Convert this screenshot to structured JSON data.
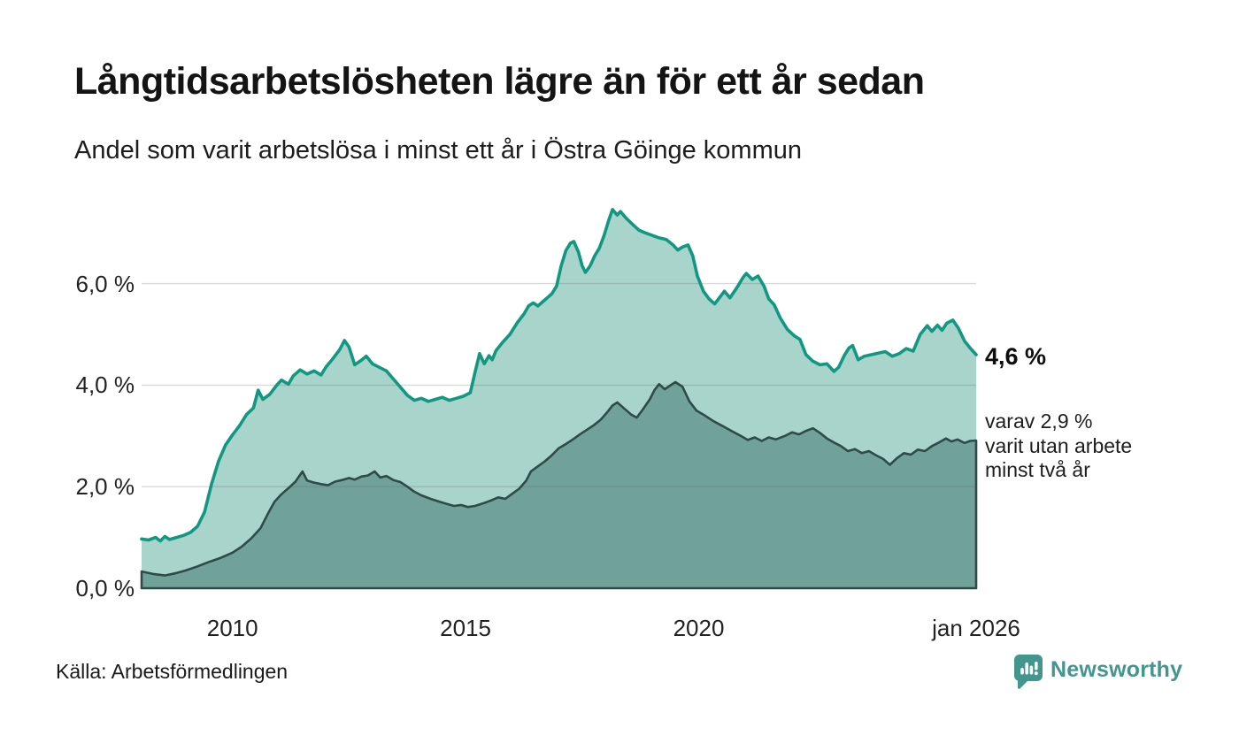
{
  "brand": {
    "name": "Newsworthy"
  },
  "colors": {
    "line_primary": "#129781",
    "fill_primary": "#a8d4cb",
    "line_secondary": "#2d4b47",
    "fill_secondary": "#71a29a",
    "gridline": "#d8d8d8",
    "brand_teal": "#43968d",
    "text": "#141414"
  },
  "chart_data": {
    "type": "area",
    "title": "Långtidsarbetslösheten lägre än för ett år sedan",
    "subtitle": "Andel som varit arbetslösa i minst ett år i Östra Göinge kommun",
    "source": "Källa: Arbetsförmedlingen",
    "xlim": [
      2008.05,
      2025.95
    ],
    "ylim": [
      0,
      7.8
    ],
    "grid": "horizontal",
    "legend": "none",
    "x_ticks": [
      {
        "t": 2010,
        "label": "2010"
      },
      {
        "t": 2015,
        "label": "2015"
      },
      {
        "t": 2020,
        "label": "2020"
      },
      {
        "t": 2025.95,
        "label": "jan 2026"
      }
    ],
    "y_ticks": [
      {
        "v": 0,
        "label": "0,0 %"
      },
      {
        "v": 2,
        "label": "2,0 %"
      },
      {
        "v": 4,
        "label": "4,0 %"
      },
      {
        "v": 6,
        "label": "6,0 %"
      }
    ],
    "annotations": {
      "latest_value_label": "4,6 %",
      "secondary_note": "varav 2,9 %\nvarit utan arbete\nminst två år"
    },
    "series": [
      {
        "name": "Arbetslösa minst ett år",
        "latest_value": 4.6,
        "line_color": "#129781",
        "fill_color": "#a8d4cb",
        "points": [
          [
            2008.05,
            0.97
          ],
          [
            2008.2,
            0.95
          ],
          [
            2008.35,
            1.0
          ],
          [
            2008.45,
            0.93
          ],
          [
            2008.55,
            1.02
          ],
          [
            2008.65,
            0.96
          ],
          [
            2008.8,
            1.0
          ],
          [
            2008.95,
            1.04
          ],
          [
            2009.1,
            1.1
          ],
          [
            2009.25,
            1.22
          ],
          [
            2009.4,
            1.5
          ],
          [
            2009.55,
            2.05
          ],
          [
            2009.7,
            2.5
          ],
          [
            2009.85,
            2.82
          ],
          [
            2010.0,
            3.02
          ],
          [
            2010.15,
            3.2
          ],
          [
            2010.3,
            3.42
          ],
          [
            2010.45,
            3.55
          ],
          [
            2010.55,
            3.9
          ],
          [
            2010.65,
            3.72
          ],
          [
            2010.8,
            3.82
          ],
          [
            2010.95,
            4.0
          ],
          [
            2011.05,
            4.1
          ],
          [
            2011.2,
            4.02
          ],
          [
            2011.3,
            4.18
          ],
          [
            2011.45,
            4.3
          ],
          [
            2011.6,
            4.22
          ],
          [
            2011.75,
            4.28
          ],
          [
            2011.9,
            4.2
          ],
          [
            2012.0,
            4.35
          ],
          [
            2012.15,
            4.52
          ],
          [
            2012.3,
            4.7
          ],
          [
            2012.4,
            4.88
          ],
          [
            2012.5,
            4.75
          ],
          [
            2012.62,
            4.4
          ],
          [
            2012.75,
            4.48
          ],
          [
            2012.87,
            4.57
          ],
          [
            2013.0,
            4.42
          ],
          [
            2013.15,
            4.35
          ],
          [
            2013.3,
            4.28
          ],
          [
            2013.45,
            4.12
          ],
          [
            2013.6,
            3.96
          ],
          [
            2013.75,
            3.8
          ],
          [
            2013.9,
            3.7
          ],
          [
            2014.05,
            3.74
          ],
          [
            2014.2,
            3.68
          ],
          [
            2014.35,
            3.72
          ],
          [
            2014.5,
            3.76
          ],
          [
            2014.65,
            3.7
          ],
          [
            2014.8,
            3.74
          ],
          [
            2014.95,
            3.78
          ],
          [
            2015.1,
            3.85
          ],
          [
            2015.2,
            4.25
          ],
          [
            2015.3,
            4.62
          ],
          [
            2015.4,
            4.42
          ],
          [
            2015.5,
            4.58
          ],
          [
            2015.57,
            4.5
          ],
          [
            2015.65,
            4.68
          ],
          [
            2015.8,
            4.85
          ],
          [
            2015.95,
            5.0
          ],
          [
            2016.1,
            5.22
          ],
          [
            2016.25,
            5.4
          ],
          [
            2016.35,
            5.56
          ],
          [
            2016.45,
            5.62
          ],
          [
            2016.55,
            5.56
          ],
          [
            2016.7,
            5.68
          ],
          [
            2016.85,
            5.8
          ],
          [
            2016.95,
            5.95
          ],
          [
            2017.05,
            6.35
          ],
          [
            2017.15,
            6.65
          ],
          [
            2017.25,
            6.8
          ],
          [
            2017.32,
            6.83
          ],
          [
            2017.42,
            6.62
          ],
          [
            2017.5,
            6.35
          ],
          [
            2017.57,
            6.22
          ],
          [
            2017.67,
            6.35
          ],
          [
            2017.77,
            6.55
          ],
          [
            2017.87,
            6.7
          ],
          [
            2017.97,
            6.95
          ],
          [
            2018.07,
            7.25
          ],
          [
            2018.15,
            7.46
          ],
          [
            2018.25,
            7.35
          ],
          [
            2018.32,
            7.42
          ],
          [
            2018.45,
            7.28
          ],
          [
            2018.6,
            7.15
          ],
          [
            2018.72,
            7.05
          ],
          [
            2018.85,
            7.0
          ],
          [
            2019.0,
            6.95
          ],
          [
            2019.15,
            6.9
          ],
          [
            2019.3,
            6.87
          ],
          [
            2019.45,
            6.76
          ],
          [
            2019.55,
            6.66
          ],
          [
            2019.65,
            6.72
          ],
          [
            2019.77,
            6.76
          ],
          [
            2019.87,
            6.55
          ],
          [
            2019.97,
            6.15
          ],
          [
            2020.1,
            5.85
          ],
          [
            2020.22,
            5.7
          ],
          [
            2020.34,
            5.6
          ],
          [
            2020.45,
            5.73
          ],
          [
            2020.55,
            5.85
          ],
          [
            2020.67,
            5.72
          ],
          [
            2020.82,
            5.92
          ],
          [
            2020.95,
            6.12
          ],
          [
            2021.02,
            6.2
          ],
          [
            2021.15,
            6.08
          ],
          [
            2021.27,
            6.15
          ],
          [
            2021.4,
            5.95
          ],
          [
            2021.5,
            5.7
          ],
          [
            2021.62,
            5.58
          ],
          [
            2021.75,
            5.32
          ],
          [
            2021.9,
            5.1
          ],
          [
            2022.05,
            4.97
          ],
          [
            2022.17,
            4.9
          ],
          [
            2022.3,
            4.6
          ],
          [
            2022.45,
            4.47
          ],
          [
            2022.6,
            4.4
          ],
          [
            2022.75,
            4.42
          ],
          [
            2022.9,
            4.27
          ],
          [
            2023.0,
            4.35
          ],
          [
            2023.12,
            4.58
          ],
          [
            2023.22,
            4.73
          ],
          [
            2023.3,
            4.78
          ],
          [
            2023.42,
            4.5
          ],
          [
            2023.55,
            4.57
          ],
          [
            2023.7,
            4.6
          ],
          [
            2023.85,
            4.63
          ],
          [
            2024.0,
            4.66
          ],
          [
            2024.15,
            4.57
          ],
          [
            2024.3,
            4.62
          ],
          [
            2024.45,
            4.72
          ],
          [
            2024.6,
            4.67
          ],
          [
            2024.75,
            5.0
          ],
          [
            2024.9,
            5.17
          ],
          [
            2025.0,
            5.06
          ],
          [
            2025.12,
            5.18
          ],
          [
            2025.22,
            5.08
          ],
          [
            2025.32,
            5.22
          ],
          [
            2025.45,
            5.28
          ],
          [
            2025.57,
            5.12
          ],
          [
            2025.7,
            4.87
          ],
          [
            2025.82,
            4.73
          ],
          [
            2025.95,
            4.6
          ]
        ]
      },
      {
        "name": "Arbetslösa minst två år",
        "latest_value": 2.9,
        "line_color": "#2d4b47",
        "fill_color": "#71a29a",
        "points": [
          [
            2008.05,
            0.33
          ],
          [
            2008.3,
            0.28
          ],
          [
            2008.55,
            0.25
          ],
          [
            2008.8,
            0.3
          ],
          [
            2009.0,
            0.35
          ],
          [
            2009.25,
            0.43
          ],
          [
            2009.5,
            0.52
          ],
          [
            2009.75,
            0.6
          ],
          [
            2010.0,
            0.7
          ],
          [
            2010.2,
            0.82
          ],
          [
            2010.4,
            0.98
          ],
          [
            2010.6,
            1.18
          ],
          [
            2010.75,
            1.45
          ],
          [
            2010.9,
            1.7
          ],
          [
            2011.05,
            1.85
          ],
          [
            2011.2,
            1.97
          ],
          [
            2011.35,
            2.1
          ],
          [
            2011.5,
            2.3
          ],
          [
            2011.6,
            2.12
          ],
          [
            2011.75,
            2.08
          ],
          [
            2011.9,
            2.05
          ],
          [
            2012.05,
            2.03
          ],
          [
            2012.2,
            2.1
          ],
          [
            2012.35,
            2.13
          ],
          [
            2012.5,
            2.17
          ],
          [
            2012.62,
            2.14
          ],
          [
            2012.77,
            2.2
          ],
          [
            2012.9,
            2.22
          ],
          [
            2013.05,
            2.3
          ],
          [
            2013.17,
            2.18
          ],
          [
            2013.3,
            2.21
          ],
          [
            2013.45,
            2.13
          ],
          [
            2013.6,
            2.09
          ],
          [
            2013.75,
            2.0
          ],
          [
            2013.9,
            1.9
          ],
          [
            2014.05,
            1.83
          ],
          [
            2014.25,
            1.76
          ],
          [
            2014.45,
            1.7
          ],
          [
            2014.6,
            1.66
          ],
          [
            2014.75,
            1.62
          ],
          [
            2014.9,
            1.64
          ],
          [
            2015.05,
            1.6
          ],
          [
            2015.2,
            1.62
          ],
          [
            2015.4,
            1.68
          ],
          [
            2015.55,
            1.73
          ],
          [
            2015.7,
            1.79
          ],
          [
            2015.85,
            1.76
          ],
          [
            2016.0,
            1.86
          ],
          [
            2016.15,
            1.96
          ],
          [
            2016.3,
            2.12
          ],
          [
            2016.4,
            2.3
          ],
          [
            2016.55,
            2.4
          ],
          [
            2016.7,
            2.5
          ],
          [
            2016.85,
            2.62
          ],
          [
            2017.0,
            2.76
          ],
          [
            2017.15,
            2.84
          ],
          [
            2017.3,
            2.93
          ],
          [
            2017.45,
            3.03
          ],
          [
            2017.6,
            3.12
          ],
          [
            2017.75,
            3.21
          ],
          [
            2017.9,
            3.32
          ],
          [
            2018.05,
            3.48
          ],
          [
            2018.15,
            3.6
          ],
          [
            2018.25,
            3.66
          ],
          [
            2018.4,
            3.54
          ],
          [
            2018.55,
            3.42
          ],
          [
            2018.67,
            3.36
          ],
          [
            2018.8,
            3.52
          ],
          [
            2018.95,
            3.72
          ],
          [
            2019.05,
            3.9
          ],
          [
            2019.15,
            4.02
          ],
          [
            2019.27,
            3.92
          ],
          [
            2019.4,
            4.0
          ],
          [
            2019.5,
            4.06
          ],
          [
            2019.65,
            3.97
          ],
          [
            2019.8,
            3.68
          ],
          [
            2019.95,
            3.5
          ],
          [
            2020.1,
            3.42
          ],
          [
            2020.3,
            3.3
          ],
          [
            2020.5,
            3.2
          ],
          [
            2020.7,
            3.1
          ],
          [
            2020.9,
            3.0
          ],
          [
            2021.05,
            2.92
          ],
          [
            2021.2,
            2.97
          ],
          [
            2021.35,
            2.9
          ],
          [
            2021.5,
            2.97
          ],
          [
            2021.65,
            2.93
          ],
          [
            2021.85,
            3.0
          ],
          [
            2022.0,
            3.07
          ],
          [
            2022.15,
            3.03
          ],
          [
            2022.3,
            3.1
          ],
          [
            2022.45,
            3.15
          ],
          [
            2022.6,
            3.06
          ],
          [
            2022.75,
            2.95
          ],
          [
            2022.9,
            2.87
          ],
          [
            2023.05,
            2.8
          ],
          [
            2023.2,
            2.7
          ],
          [
            2023.35,
            2.74
          ],
          [
            2023.5,
            2.66
          ],
          [
            2023.65,
            2.7
          ],
          [
            2023.8,
            2.62
          ],
          [
            2023.95,
            2.55
          ],
          [
            2024.1,
            2.43
          ],
          [
            2024.25,
            2.56
          ],
          [
            2024.4,
            2.66
          ],
          [
            2024.55,
            2.63
          ],
          [
            2024.7,
            2.73
          ],
          [
            2024.85,
            2.7
          ],
          [
            2025.0,
            2.8
          ],
          [
            2025.15,
            2.87
          ],
          [
            2025.3,
            2.95
          ],
          [
            2025.42,
            2.89
          ],
          [
            2025.55,
            2.93
          ],
          [
            2025.7,
            2.86
          ],
          [
            2025.82,
            2.9
          ],
          [
            2025.95,
            2.91
          ]
        ]
      }
    ]
  }
}
